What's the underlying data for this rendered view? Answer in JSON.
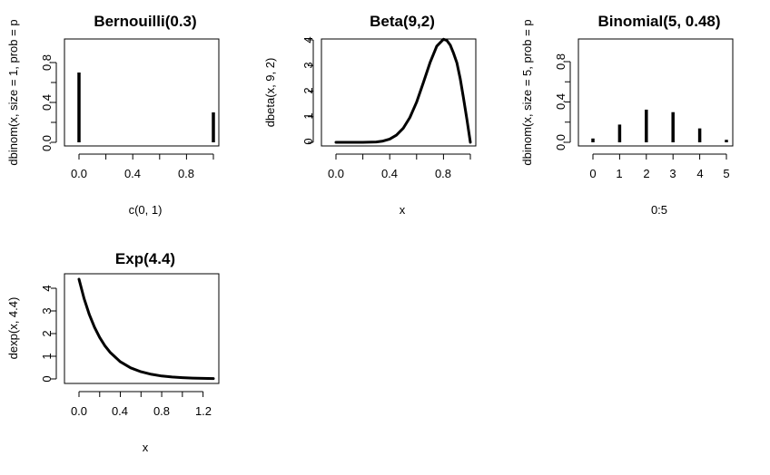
{
  "chart_data": [
    {
      "type": "bar",
      "title": "Bernouilli(0.3)",
      "xlabel": "c(0, 1)",
      "ylabel": "dbinom(x, size = 1, prob = p",
      "xlim": [
        0,
        1
      ],
      "ylim": [
        0,
        1
      ],
      "xticks": [
        "0.0",
        "0.4",
        "0.8"
      ],
      "yticks": [
        "0.0",
        "0.4",
        "0.8"
      ],
      "x": [
        0,
        1
      ],
      "values": [
        0.7,
        0.3
      ]
    },
    {
      "type": "line",
      "title": "Beta(9,2)",
      "xlabel": "x",
      "ylabel": "dbeta(x, 9, 2)",
      "xlim": [
        0,
        1
      ],
      "ylim": [
        0,
        4
      ],
      "xticks": [
        "0.0",
        "0.4",
        "0.8"
      ],
      "yticks": [
        "0",
        "1",
        "2",
        "3",
        "4"
      ],
      "x": [
        0,
        0.1,
        0.2,
        0.3,
        0.35,
        0.4,
        0.45,
        0.5,
        0.55,
        0.6,
        0.65,
        0.7,
        0.75,
        0.8,
        0.825,
        0.85,
        0.875,
        0.9,
        0.925,
        0.95,
        0.975,
        1.0
      ],
      "y": [
        0,
        0,
        0.0004,
        0.0149,
        0.048,
        0.1258,
        0.2789,
        0.5469,
        0.9684,
        1.5676,
        2.3288,
        3.1132,
        3.7544,
        4.0265,
        3.9799,
        3.8035,
        3.4798,
        3.0993,
        2.4733,
        1.696,
        0.8744,
        0
      ]
    },
    {
      "type": "bar",
      "title": "Binomial(5, 0.48)",
      "xlabel": "0:5",
      "ylabel": "dbinom(x, size = 5, prob = p",
      "xlim": [
        0,
        5
      ],
      "ylim": [
        0,
        1
      ],
      "xticks": [
        "0",
        "1",
        "2",
        "3",
        "4",
        "5"
      ],
      "yticks": [
        "0.0",
        "0.4",
        "0.8"
      ],
      "x": [
        0,
        1,
        2,
        3,
        4,
        5
      ],
      "values": [
        0.038,
        0.176,
        0.324,
        0.299,
        0.138,
        0.025
      ]
    },
    {
      "type": "line",
      "title": "Exp(4.4)",
      "xlabel": "x",
      "ylabel": "dexp(x, 4.4)",
      "xlim": [
        0,
        1.3
      ],
      "ylim": [
        0,
        4.4
      ],
      "xticks": [
        "0.0",
        "0.4",
        "0.8",
        "1.2"
      ],
      "yticks": [
        "0",
        "1",
        "2",
        "3",
        "4"
      ],
      "x": [
        0,
        0.05,
        0.1,
        0.15,
        0.2,
        0.25,
        0.3,
        0.4,
        0.5,
        0.6,
        0.7,
        0.8,
        0.9,
        1.0,
        1.1,
        1.2,
        1.3
      ],
      "y": [
        4.4,
        3.532,
        2.835,
        2.276,
        1.827,
        1.466,
        1.177,
        0.758,
        0.488,
        0.314,
        0.202,
        0.13,
        0.084,
        0.054,
        0.035,
        0.022,
        0.014
      ]
    }
  ]
}
